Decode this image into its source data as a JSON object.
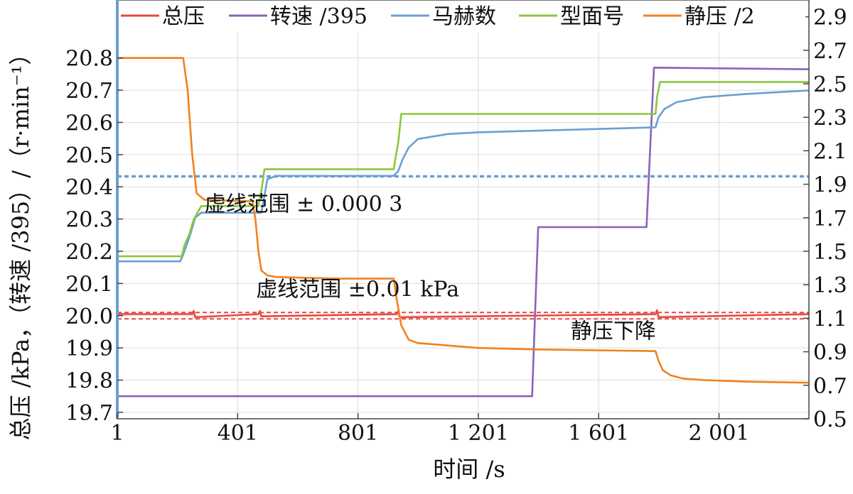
{
  "chart_data": {
    "type": "line",
    "title": "",
    "xlabel": "时间 /s",
    "ylabel_left": "总压 /kPa，（转速 /395）/（r·min⁻¹）",
    "ylabel_right": "",
    "xlim": [
      1,
      2300
    ],
    "ylim_left": [
      19.68,
      20.98
    ],
    "ylim_right": [
      0.5,
      3.0
    ],
    "x_ticks": [
      {
        "value": 1,
        "label": "1"
      },
      {
        "value": 401,
        "label": "401"
      },
      {
        "value": 801,
        "label": "801"
      },
      {
        "value": 1201,
        "label": "1 201"
      },
      {
        "value": 1601,
        "label": "1 601"
      },
      {
        "value": 2001,
        "label": "2 001"
      }
    ],
    "y_left_ticks": [
      {
        "value": 19.7,
        "label": "19.7"
      },
      {
        "value": 19.8,
        "label": "19.8"
      },
      {
        "value": 19.9,
        "label": "19.9"
      },
      {
        "value": 20.0,
        "label": "20.0"
      },
      {
        "value": 20.1,
        "label": "20.1"
      },
      {
        "value": 20.2,
        "label": "20.2"
      },
      {
        "value": 20.3,
        "label": "20.3"
      },
      {
        "value": 20.4,
        "label": "20.4"
      },
      {
        "value": 20.5,
        "label": "20.5"
      },
      {
        "value": 20.6,
        "label": "20.6"
      },
      {
        "value": 20.7,
        "label": "20.7"
      },
      {
        "value": 20.8,
        "label": "20.8"
      }
    ],
    "y_right_ticks": [
      {
        "value": 0.5,
        "label": "0.5"
      },
      {
        "value": 0.7,
        "label": "0.7"
      },
      {
        "value": 0.9,
        "label": "0.9"
      },
      {
        "value": 1.1,
        "label": "1.1"
      },
      {
        "value": 1.3,
        "label": "1.3"
      },
      {
        "value": 1.5,
        "label": "1.5"
      },
      {
        "value": 1.7,
        "label": "1.7"
      },
      {
        "value": 1.9,
        "label": "1.9"
      },
      {
        "value": 2.1,
        "label": "2.1"
      },
      {
        "value": 2.3,
        "label": "2.3"
      },
      {
        "value": 2.5,
        "label": "2.5"
      },
      {
        "value": 2.7,
        "label": "2.7"
      },
      {
        "value": 2.9,
        "label": "2.9"
      }
    ],
    "grid": true,
    "legend_position": "top",
    "series": [
      {
        "name": "总压",
        "axis": "left",
        "color": "#e8473f",
        "x": [
          1,
          250,
          255,
          260,
          470,
          475,
          480,
          930,
          935,
          940,
          1790,
          1795,
          1800,
          2300
        ],
        "y": [
          20.005,
          20.005,
          20.015,
          19.995,
          20.005,
          20.015,
          19.998,
          20.005,
          20.015,
          19.995,
          20.005,
          20.017,
          19.995,
          20.005
        ]
      },
      {
        "name": "转速 /395",
        "axis": "left",
        "color": "#8a63b8",
        "x": [
          1,
          1380,
          1400,
          1760,
          1785,
          2300
        ],
        "y": [
          19.75,
          19.75,
          20.275,
          20.275,
          20.77,
          20.765
        ]
      },
      {
        "name": "马赫数",
        "axis": "right",
        "color": "#6b9fd1",
        "x": [
          1,
          210,
          220,
          240,
          260,
          280,
          480,
          500,
          530,
          920,
          935,
          950,
          970,
          1000,
          1100,
          1200,
          1400,
          1600,
          1790,
          1800,
          1820,
          1860,
          1950,
          2100,
          2300
        ],
        "y": [
          1.44,
          1.44,
          1.48,
          1.58,
          1.7,
          1.73,
          1.73,
          1.93,
          1.95,
          1.95,
          1.98,
          2.05,
          2.12,
          2.17,
          2.2,
          2.21,
          2.22,
          2.23,
          2.24,
          2.3,
          2.35,
          2.39,
          2.42,
          2.44,
          2.46
        ]
      },
      {
        "name": "型面号",
        "axis": "right",
        "color": "#8cc63f",
        "x": [
          1,
          215,
          225,
          240,
          255,
          280,
          470,
          480,
          490,
          920,
          925,
          935,
          945,
          1790,
          1795,
          1805,
          2300
        ],
        "y": [
          1.47,
          1.47,
          1.54,
          1.6,
          1.69,
          1.77,
          1.77,
          1.86,
          1.99,
          1.99,
          2.05,
          2.15,
          2.32,
          2.32,
          2.42,
          2.51,
          2.51
        ]
      },
      {
        "name": "静压 /2",
        "axis": "left",
        "color": "#f0821e",
        "x": [
          1,
          220,
          235,
          250,
          265,
          290,
          450,
          460,
          470,
          480,
          500,
          530,
          740,
          920,
          930,
          945,
          970,
          1000,
          1200,
          1400,
          1790,
          1800,
          1815,
          1840,
          1880,
          1950,
          2100,
          2300
        ],
        "y": [
          20.8,
          20.8,
          20.7,
          20.5,
          20.38,
          20.36,
          20.355,
          20.3,
          20.2,
          20.14,
          20.125,
          20.12,
          20.115,
          20.115,
          20.05,
          19.97,
          19.925,
          19.915,
          19.9,
          19.895,
          19.89,
          19.86,
          19.83,
          19.815,
          19.805,
          19.8,
          19.795,
          19.792
        ]
      }
    ],
    "reference_lines": [
      {
        "axis": "right",
        "value": 1.95,
        "style": "dashed",
        "color": "#6b9fd1"
      },
      {
        "axis": "right",
        "value": 1.944,
        "style": "dashed",
        "color": "#6b9fd1"
      },
      {
        "axis": "left",
        "value": 20.01,
        "style": "dashed",
        "color": "#e8473f"
      },
      {
        "axis": "left",
        "value": 19.99,
        "style": "dashed",
        "color": "#e8473f"
      }
    ],
    "annotations": [
      {
        "text": "虚线范围 ± 0.000 3",
        "x": 620,
        "y": 20.325
      },
      {
        "text": "虚线范围 ±0.01 kPa",
        "x": 800,
        "y": 20.06
      },
      {
        "text": "静压下降",
        "x": 1650,
        "y": 19.93
      }
    ]
  }
}
